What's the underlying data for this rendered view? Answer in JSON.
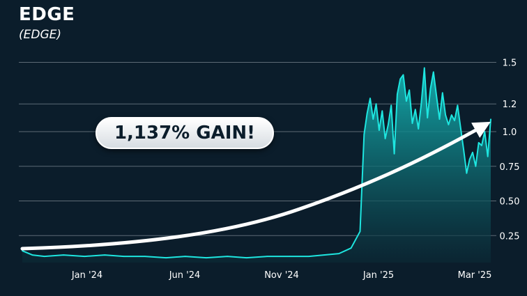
{
  "header": {
    "title": "EDGE",
    "subtitle": "(EDGE)"
  },
  "annotation": {
    "text": "1,137% GAIN!"
  },
  "colors": {
    "background": "#0b1d2b",
    "line": "#1ee6e0",
    "fill_top": "#14b3b3",
    "fill_bottom": "#0b2a36",
    "grid": "#5d6b76",
    "arrow": "#ffffff"
  },
  "chart_data": {
    "type": "area",
    "title": "EDGE",
    "subtitle": "(EDGE)",
    "xlabel": "",
    "ylabel": "",
    "x_tick_labels": [
      "Jan '24",
      "Jun '24",
      "Nov '24",
      "Jan '25",
      "Mar '25"
    ],
    "y_ticks": [
      0.25,
      0.5,
      0.75,
      1.0,
      1.2,
      1.5
    ],
    "y_tick_labels": [
      "0.25",
      "0.50",
      "0.75",
      "1.0",
      "1.2",
      "1.5"
    ],
    "ylim": [
      0.08,
      1.5
    ],
    "y_axis_side": "right",
    "grid": true,
    "series": [
      {
        "x": [
          "2023-12-10",
          "2023-12-20",
          "2024-01-01",
          "2024-01-20",
          "2024-02-10",
          "2024-03-01",
          "2024-03-20",
          "2024-04-10",
          "2024-05-01",
          "2024-05-20",
          "2024-06-10",
          "2024-07-01",
          "2024-07-20",
          "2024-08-10",
          "2024-09-01",
          "2024-09-20",
          "2024-10-05",
          "2024-10-20",
          "2024-11-01",
          "2024-11-10",
          "2024-11-14",
          "2024-11-17",
          "2024-11-20",
          "2024-11-23",
          "2024-11-26",
          "2024-11-29",
          "2024-12-02",
          "2024-12-05",
          "2024-12-08",
          "2024-12-11",
          "2024-12-14",
          "2024-12-17",
          "2024-12-20",
          "2024-12-23",
          "2024-12-26",
          "2024-12-29",
          "2025-01-01",
          "2025-01-04",
          "2025-01-07",
          "2025-01-10",
          "2025-01-13",
          "2025-01-16",
          "2025-01-19",
          "2025-01-22",
          "2025-01-25",
          "2025-01-28",
          "2025-01-31",
          "2025-02-03",
          "2025-02-06",
          "2025-02-09",
          "2025-02-12",
          "2025-02-15",
          "2025-02-18",
          "2025-02-21",
          "2025-02-24",
          "2025-02-27",
          "2025-03-02",
          "2025-03-05",
          "2025-03-08",
          "2025-03-11",
          "2025-03-14",
          "2025-03-17",
          "2025-03-20"
        ],
        "y": [
          0.14,
          0.11,
          0.1,
          0.11,
          0.1,
          0.11,
          0.1,
          0.1,
          0.09,
          0.1,
          0.09,
          0.1,
          0.09,
          0.1,
          0.1,
          0.1,
          0.11,
          0.12,
          0.16,
          0.28,
          0.98,
          1.13,
          1.24,
          1.09,
          1.2,
          1.01,
          1.15,
          0.95,
          1.05,
          1.19,
          0.84,
          1.27,
          1.38,
          1.41,
          1.22,
          1.3,
          1.06,
          1.16,
          1.02,
          1.21,
          1.46,
          1.1,
          1.31,
          1.43,
          1.26,
          1.09,
          1.28,
          1.12,
          1.05,
          1.12,
          1.08,
          1.19,
          1.03,
          0.87,
          0.7,
          0.8,
          0.85,
          0.75,
          0.92,
          0.9,
          1.0,
          0.82,
          1.09
        ]
      }
    ],
    "annotations": [
      "1,137% GAIN!"
    ]
  }
}
